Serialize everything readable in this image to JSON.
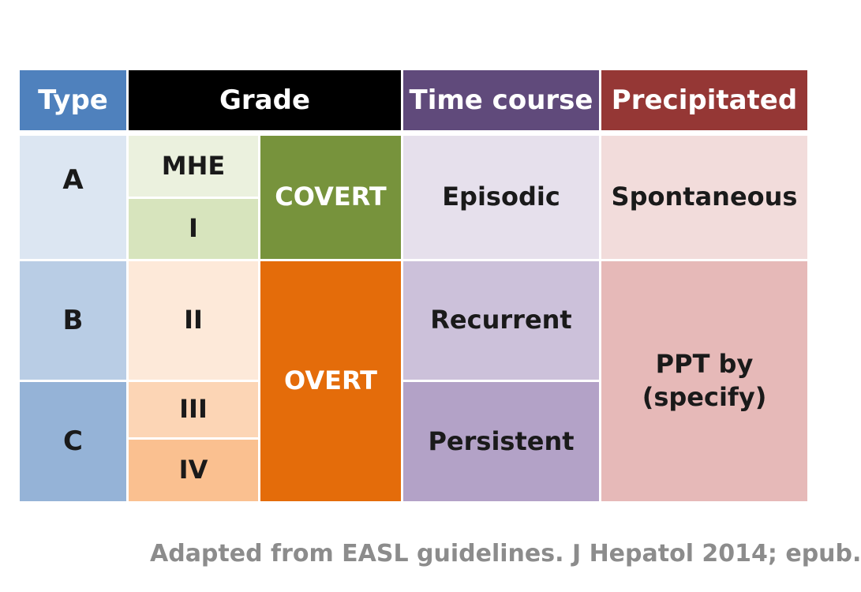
{
  "headers": {
    "type": "Type",
    "grade": "Grade",
    "time_course": "Time course",
    "precipitated": "Precipitated"
  },
  "types": [
    "A",
    "B",
    "C"
  ],
  "grades": [
    "MHE",
    "I",
    "II",
    "III",
    "IV"
  ],
  "grade_groups": [
    "COVERT",
    "OVERT"
  ],
  "time_courses": [
    "Episodic",
    "Recurrent",
    "Persistent"
  ],
  "precipitated": {
    "spontaneous": "Spontaneous",
    "ppt_line1": "PPT by",
    "ppt_line2": "(specify)"
  },
  "footer": "Adapted from EASL guidelines. J Hepatol 2014; epub.",
  "colors": {
    "type_header": "#4f81bd",
    "grade_header": "#000000",
    "time_header": "#604a7b",
    "precip_header": "#953735",
    "covert": "#77933c",
    "overt": "#e46c0a",
    "footer_text": "#8c8c8c"
  }
}
